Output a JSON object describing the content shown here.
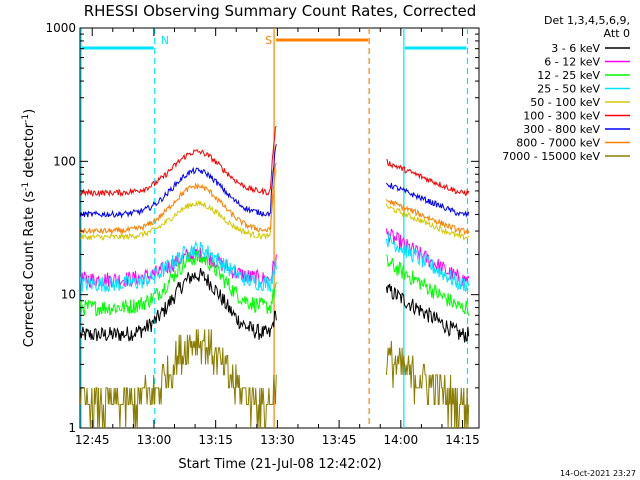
{
  "chart_data": {
    "type": "line",
    "title": "RHESSI Observing Summary Count Rates, Corrected",
    "xlabel": "Start Time (21-Jul-08 12:42:02)",
    "ylabel_main": "Corrected Count Rate (s",
    "ylabel_sup1": "-1",
    "ylabel_mid": " detector",
    "ylabel_sup2": "-1",
    "ylabel_end": ")",
    "yscale": "log",
    "ylim": [
      1,
      1000
    ],
    "y_ticks": [
      {
        "value": 1,
        "label": "1"
      },
      {
        "value": 10,
        "label": "10"
      },
      {
        "value": 100,
        "label": "100"
      },
      {
        "value": 1000,
        "label": "1000"
      }
    ],
    "xlim_minutes": [
      762.03,
      859
    ],
    "x_ticks": [
      {
        "value": 765,
        "label": "12:45"
      },
      {
        "value": 780,
        "label": "13:00"
      },
      {
        "value": 795,
        "label": "13:15"
      },
      {
        "value": 810,
        "label": "13:30"
      },
      {
        "value": 825,
        "label": "13:45"
      },
      {
        "value": 840,
        "label": "14:00"
      },
      {
        "value": 855,
        "label": "14:15"
      }
    ],
    "legend_header": [
      "Det 1,3,4,5,6,9,",
      "Att 0"
    ],
    "legend_position": "right",
    "series": [
      {
        "name": "3 - 6 keV",
        "color": "#000000",
        "base": 5,
        "peak": 14
      },
      {
        "name": "6 - 12 keV",
        "color": "#ff00ff",
        "base": 13,
        "peak": 20
      },
      {
        "name": "12 - 25 keV",
        "color": "#00ff00",
        "base": 8,
        "peak": 19
      },
      {
        "name": "25 - 50 keV",
        "color": "#00e5ff",
        "base": 12,
        "peak": 22
      },
      {
        "name": "50 - 100 keV",
        "color": "#d4c800",
        "base": 27,
        "peak": 48
      },
      {
        "name": "100 - 300 keV",
        "color": "#ff0000",
        "base": 58,
        "peak": 118
      },
      {
        "name": "300 - 800 keV",
        "color": "#0000ff",
        "base": 40,
        "peak": 85
      },
      {
        "name": "800 - 7000 keV",
        "color": "#ff8000",
        "base": 30,
        "peak": 65
      },
      {
        "name": "7000 - 15000 keV",
        "color": "#8b7d00",
        "base": 1.5,
        "peak": 4.5
      }
    ],
    "annotations": [
      {
        "label": "N",
        "color": "#00e5ff",
        "start_min": 762.03,
        "end_min": 780.2
      },
      {
        "label": "S",
        "color": "#ff8000",
        "start_min": 809.2,
        "end_min": 832.3
      },
      {
        "label": "",
        "color": "#00e5ff",
        "start_min": 840.5,
        "end_min": 856.2
      }
    ],
    "gap_minutes": [
      810.0,
      836.5
    ],
    "footer_date": "14-Oct-2021 23:27"
  }
}
